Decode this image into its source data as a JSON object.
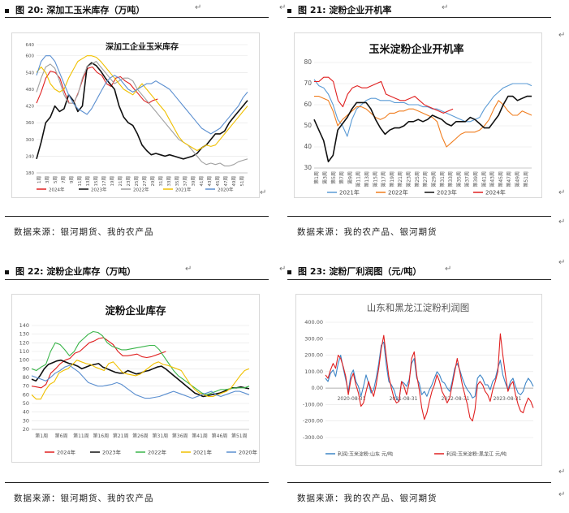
{
  "figures": {
    "fig20": {
      "label": "图 20:",
      "title": "深加工玉米库存（万吨）"
    },
    "fig21": {
      "label": "图 21:",
      "title": "淀粉企业开机率"
    },
    "fig22": {
      "label": "图 22:",
      "title": "淀粉企业库存（万吨）"
    },
    "fig23": {
      "label": "图 23:",
      "title": "淀粉厂利润图（元/吨）"
    }
  },
  "sources": {
    "fig20": "数据来源：银河期货、我的农产品",
    "fig21": "数据来源：我的农产品、银河期货",
    "fig22": "数据来源：银河期货、我的农产品",
    "fig23": "数据来源：我的农产品、银河期货"
  },
  "colors": {
    "s2024": "#e02020",
    "s2023": "#101010",
    "s2022": "#3ab54a",
    "s2021": "#f0c000",
    "s2020": "#5b8fd0",
    "s2022b": "#a0a0a0",
    "orange": "#f07d1e",
    "blue": "#4f8fcf",
    "red": "#e01010"
  },
  "chart_data": [
    {
      "id": "fig20",
      "type": "line",
      "title": "深加工企业玉米库存",
      "ylim": [
        180,
        640
      ],
      "yticks": [
        "180",
        "240",
        "300",
        "360",
        "420",
        "480",
        "540",
        "600",
        "640"
      ],
      "xticks": [
        "1周",
        "3周",
        "5周",
        "7周",
        "9周",
        "11周",
        "13周",
        "15周",
        "17周",
        "19周",
        "21周",
        "23周",
        "25周",
        "27周",
        "29周",
        "31周",
        "33周",
        "35周",
        "37周",
        "39周",
        "41周",
        "43周",
        "45周",
        "47周",
        "49周",
        "51周"
      ],
      "legend": [
        "2024年",
        "2023年",
        "2022年",
        "2021年",
        "2020年"
      ],
      "series": [
        {
          "name": "2024年",
          "color": "#e02020",
          "values": [
            430,
            470,
            520,
            545,
            540,
            520,
            470,
            430,
            430,
            470,
            520,
            555,
            560,
            540,
            530,
            500,
            490,
            520,
            525,
            510,
            500,
            480,
            460,
            440,
            430,
            440,
            445
          ]
        },
        {
          "name": "2023年",
          "color": "#101010",
          "values": [
            230,
            290,
            360,
            380,
            420,
            400,
            410,
            460,
            440,
            400,
            420,
            560,
            575,
            565,
            545,
            520,
            500,
            480,
            420,
            380,
            360,
            350,
            320,
            280,
            260,
            245,
            250,
            245,
            240,
            245,
            240,
            235,
            230,
            235,
            240,
            250,
            270,
            280,
            300,
            320,
            320,
            330,
            360,
            380,
            400,
            420,
            440
          ]
        },
        {
          "name": "2022年",
          "color": "#a0a0a0",
          "values": [
            470,
            520,
            560,
            570,
            555,
            510,
            460,
            430,
            430,
            460,
            520,
            560,
            570,
            580,
            560,
            540,
            520,
            500,
            510,
            520,
            520,
            510,
            480,
            460,
            440,
            420,
            400,
            380,
            360,
            340,
            320,
            300,
            290,
            280,
            260,
            240,
            220,
            210,
            215,
            210,
            215,
            205,
            205,
            210,
            220,
            225,
            230
          ]
        },
        {
          "name": "2021年",
          "color": "#f0c000",
          "values": [
            540,
            560,
            540,
            500,
            480,
            470,
            480,
            520,
            550,
            580,
            590,
            600,
            600,
            595,
            580,
            560,
            540,
            520,
            500,
            480,
            470,
            460,
            480,
            500,
            480,
            460,
            440,
            420,
            400,
            370,
            340,
            310,
            290,
            280,
            270,
            260,
            270,
            280,
            275,
            280,
            300,
            320,
            340,
            360,
            380,
            400,
            420
          ]
        },
        {
          "name": "2020年",
          "color": "#5b8fd0",
          "values": [
            530,
            580,
            600,
            600,
            580,
            540,
            500,
            460,
            430,
            410,
            400,
            390,
            410,
            440,
            470,
            500,
            520,
            530,
            520,
            500,
            480,
            470,
            480,
            490,
            500,
            500,
            510,
            500,
            490,
            480,
            460,
            440,
            420,
            400,
            380,
            360,
            340,
            330,
            320,
            330,
            340,
            360,
            380,
            400,
            420,
            450,
            470
          ]
        }
      ]
    },
    {
      "id": "fig21",
      "type": "line",
      "title": "玉米淀粉企业开机率",
      "ylim": [
        30,
        80
      ],
      "yticks": [
        "30",
        "40",
        "50",
        "60",
        "70",
        "80"
      ],
      "xticks": [
        "第1周",
        "第3周",
        "第5周",
        "第7周",
        "第9周",
        "第11周",
        "第13周",
        "第15周",
        "第17周",
        "第19周",
        "第21周",
        "第23周",
        "第25周",
        "第27周",
        "第29周",
        "第31周",
        "第33周",
        "第35周",
        "第37周",
        "第39周",
        "第41周",
        "第43周",
        "第45周",
        "第47周",
        "第49周",
        "第51周"
      ],
      "legend": [
        "2021年",
        "2022年",
        "2023年",
        "2024年"
      ],
      "series": [
        {
          "name": "2021年",
          "color": "#5b9bd5",
          "values": [
            72,
            69,
            68,
            65,
            60,
            53,
            50,
            45,
            53,
            58,
            60,
            62,
            63,
            63,
            62,
            62,
            62,
            61,
            61,
            61,
            60,
            60,
            60,
            59,
            59,
            58,
            58,
            57,
            56,
            55,
            54,
            53,
            52,
            52,
            53,
            54,
            58,
            61,
            64,
            66,
            68,
            69,
            70,
            70,
            70,
            70,
            69
          ]
        },
        {
          "name": "2022年",
          "color": "#f07d1e",
          "values": [
            64,
            64,
            63,
            62,
            57,
            50,
            53,
            55,
            57,
            59,
            59,
            58,
            56,
            54,
            53,
            54,
            56,
            56,
            57,
            57,
            58,
            58,
            57,
            56,
            55,
            54,
            52,
            45,
            40,
            42,
            44,
            46,
            47,
            47,
            47,
            48,
            50,
            53,
            58,
            62,
            60,
            57,
            55,
            55,
            57,
            56,
            55
          ]
        },
        {
          "name": "2023年",
          "color": "#101010",
          "values": [
            53,
            48,
            43,
            33,
            36,
            48,
            51,
            54,
            58,
            61,
            61,
            61,
            58,
            53,
            49,
            46,
            48,
            49,
            49,
            50,
            52,
            52,
            53,
            52,
            53,
            55,
            54,
            53,
            51,
            50,
            52,
            52,
            52,
            54,
            53,
            51,
            49,
            49,
            52,
            55,
            60,
            64,
            64,
            62,
            63,
            64,
            64
          ]
        },
        {
          "name": "2024年",
          "color": "#e02020",
          "values": [
            71,
            71,
            73,
            73,
            71,
            62,
            59,
            65,
            68,
            69,
            68,
            68,
            69,
            70,
            71,
            65,
            64,
            63,
            62,
            62,
            63,
            64,
            62,
            60,
            59,
            58,
            57,
            56,
            57,
            58
          ]
        }
      ]
    },
    {
      "id": "fig22",
      "type": "line",
      "title": "淀粉企业库存",
      "ylim": [
        20,
        140
      ],
      "yticks": [
        "20",
        "30",
        "40",
        "50",
        "60",
        "70",
        "80",
        "90",
        "100",
        "110",
        "120",
        "130",
        "140"
      ],
      "xticks": [
        "第1周",
        "第6周",
        "第11周",
        "第16周",
        "第21周",
        "第26周",
        "第31周",
        "第36周",
        "第41周",
        "第46周",
        "第51周"
      ],
      "legend": [
        "2024年",
        "2023年",
        "2022年",
        "2021年",
        "2020年"
      ],
      "series": [
        {
          "name": "2024年",
          "color": "#e02020",
          "values": [
            70,
            69,
            68,
            72,
            85,
            90,
            96,
            100,
            102,
            108,
            110,
            115,
            120,
            122,
            125,
            126,
            122,
            118,
            110,
            105,
            105,
            106,
            107,
            104,
            103,
            104,
            106,
            108,
            110
          ]
        },
        {
          "name": "2023年",
          "color": "#101010",
          "values": [
            78,
            76,
            82,
            90,
            95,
            97,
            99,
            100,
            98,
            96,
            95,
            93,
            90,
            92,
            94,
            95,
            96,
            92,
            90,
            88,
            86,
            85,
            85,
            88,
            86,
            84,
            85,
            87,
            88,
            90,
            92,
            93,
            90,
            86,
            82,
            78,
            74,
            70,
            66,
            62,
            60,
            58,
            59,
            60,
            61,
            62,
            64,
            66,
            68,
            68,
            69,
            68,
            67
          ]
        },
        {
          "name": "2022年",
          "color": "#3ab54a",
          "values": [
            90,
            88,
            92,
            95,
            110,
            120,
            118,
            112,
            105,
            110,
            120,
            125,
            130,
            133,
            132,
            128,
            120,
            116,
            114,
            112,
            112,
            113,
            114,
            115,
            116,
            117,
            117,
            112,
            104,
            96,
            88,
            82,
            78,
            74,
            70,
            66,
            62,
            60,
            62,
            64,
            66,
            66,
            67,
            68,
            68,
            68,
            70
          ]
        },
        {
          "name": "2021年",
          "color": "#f0c000",
          "values": [
            60,
            55,
            55,
            65,
            72,
            75,
            85,
            88,
            90,
            95,
            100,
            98,
            96,
            95,
            92,
            90,
            88,
            96,
            98,
            92,
            86,
            84,
            83,
            82,
            84,
            88,
            92,
            96,
            98,
            95,
            94,
            92,
            90,
            88,
            80,
            72,
            66,
            62,
            60,
            58,
            58,
            60,
            62,
            64,
            68,
            75,
            82,
            88,
            90
          ]
        },
        {
          "name": "2020年",
          "color": "#5b8fd0",
          "values": [
            82,
            80,
            78,
            76,
            80,
            85,
            88,
            92,
            94,
            90,
            86,
            80,
            74,
            72,
            70,
            70,
            71,
            72,
            74,
            72,
            68,
            64,
            60,
            58,
            56,
            56,
            57,
            58,
            60,
            62,
            64,
            62,
            60,
            58,
            56,
            58,
            60,
            62,
            64,
            60,
            58,
            60,
            62,
            64,
            64,
            62,
            60
          ]
        }
      ]
    },
    {
      "id": "fig23",
      "type": "line",
      "title": "山东和黑龙江淀粉利润图",
      "ylim": [
        -300,
        400
      ],
      "yticks": [
        "400.00",
        "300.00",
        "200.00",
        "100.00",
        "0.00",
        "-100.00",
        "-200.00",
        "-300.00"
      ],
      "xticks": [
        "2020-08-31",
        "2021-08-31",
        "2022-08-31",
        "2023-08-31"
      ],
      "legend": [
        "利润:玉米淀粉:山东 元/吨",
        "利润:玉米淀粉:黑龙江 元/吨"
      ],
      "series": [
        {
          "name": "利润:玉米淀粉:山东 元/吨",
          "color": "#3d85c6",
          "values": [
            60,
            40,
            90,
            110,
            70,
            150,
            200,
            120,
            50,
            -20,
            80,
            110,
            40,
            10,
            -50,
            10,
            80,
            30,
            -30,
            -10,
            60,
            150,
            260,
            280,
            140,
            40,
            20,
            -10,
            -60,
            -80,
            40,
            30,
            10,
            50,
            150,
            180,
            60,
            30,
            -40,
            -20,
            -50,
            -10,
            20,
            60,
            100,
            80,
            40,
            30,
            0,
            -20,
            40,
            120,
            150,
            110,
            60,
            20,
            -10,
            -30,
            -60,
            -50,
            60,
            80,
            60,
            20,
            20,
            -10,
            40,
            60,
            120,
            170,
            80,
            30,
            -10,
            40,
            60,
            10,
            -30,
            -40,
            -20,
            30,
            60,
            40,
            10
          ]
        },
        {
          "name": "利润:玉米淀粉:黑龙江 元/吨",
          "color": "#e02020",
          "values": [
            80,
            60,
            110,
            150,
            120,
            200,
            180,
            130,
            70,
            -40,
            50,
            90,
            20,
            -30,
            -110,
            -90,
            -20,
            40,
            -10,
            -50,
            20,
            120,
            240,
            320,
            190,
            70,
            0,
            -60,
            -90,
            -80,
            40,
            10,
            -40,
            30,
            180,
            220,
            80,
            -10,
            -120,
            -190,
            -150,
            -80,
            -20,
            20,
            80,
            40,
            -20,
            -50,
            -90,
            -60,
            20,
            100,
            180,
            100,
            20,
            -40,
            -100,
            -180,
            -200,
            -130,
            20,
            40,
            20,
            -20,
            -40,
            -80,
            -10,
            40,
            100,
            330,
            200,
            80,
            -20,
            20,
            40,
            -40,
            -100,
            -140,
            -150,
            -100,
            -60,
            -80,
            -120
          ]
        }
      ]
    }
  ]
}
